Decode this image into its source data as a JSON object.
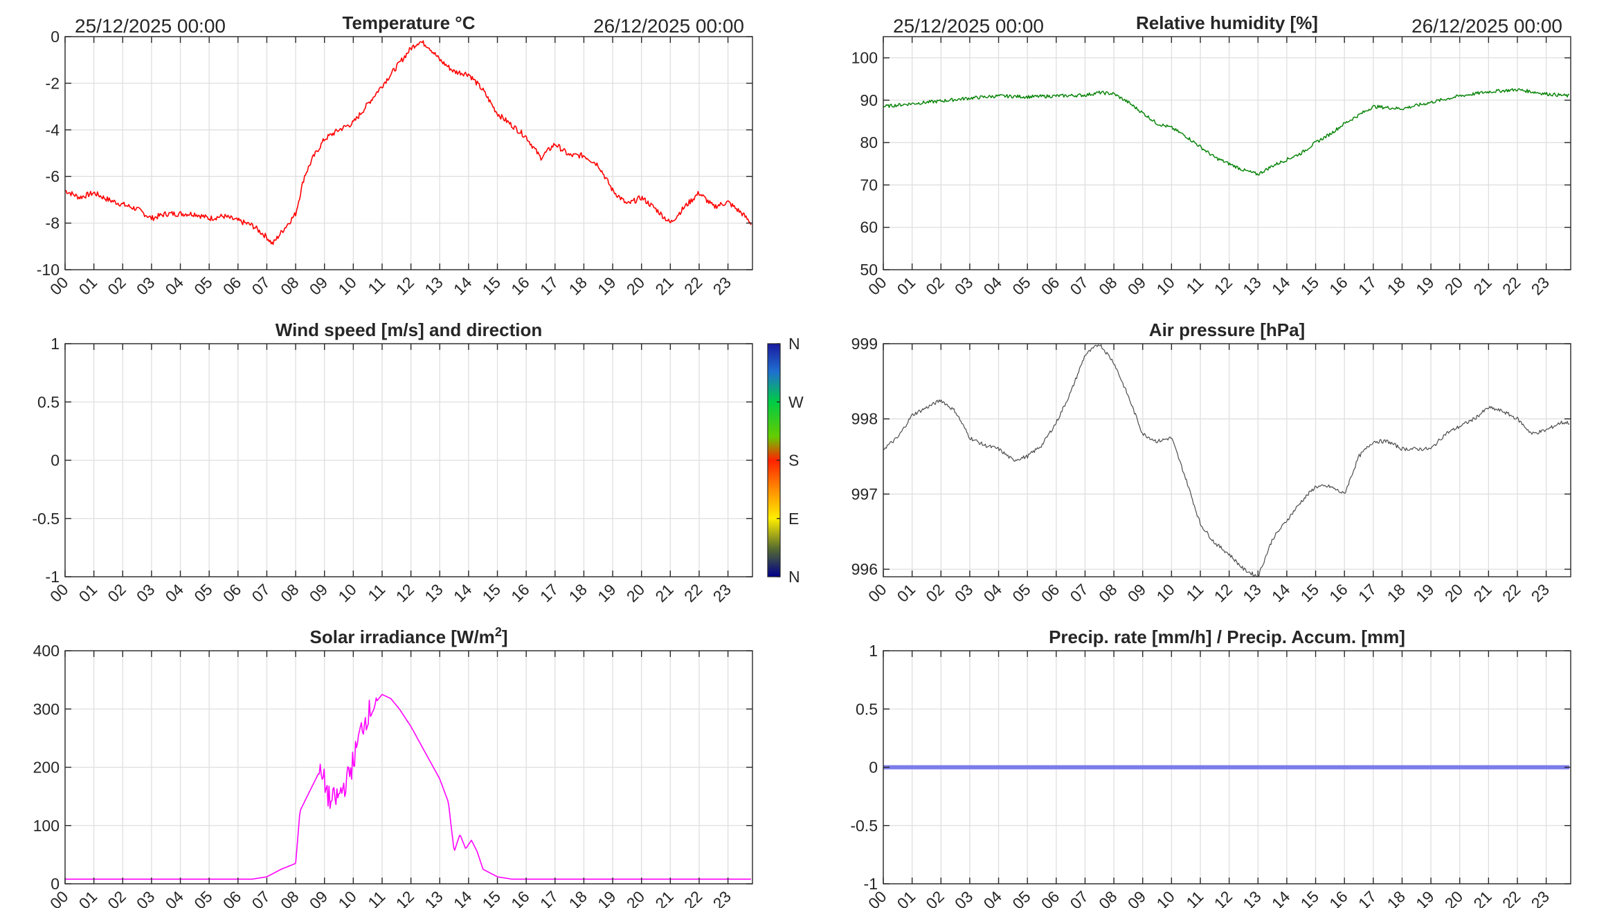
{
  "chart_data": [
    {
      "id": "temp",
      "type": "line",
      "title": "Temperature °C",
      "date_left": "25/12/2025 00:00",
      "date_right": "26/12/2025 00:00",
      "ylim": [
        -10,
        0
      ],
      "yticks": [
        0,
        -2,
        -4,
        -6,
        -8,
        -10
      ],
      "x_hours": [
        0,
        0.5,
        1,
        1.5,
        2,
        2.5,
        3,
        3.5,
        4,
        4.5,
        5,
        5.5,
        6,
        6.5,
        7,
        7.2,
        7.5,
        8,
        8.3,
        8.6,
        9,
        9.5,
        10,
        10.5,
        11,
        11.5,
        12,
        12.3,
        12.6,
        13,
        13.5,
        14,
        14.5,
        15,
        15.5,
        16,
        16.5,
        17,
        17.5,
        18,
        18.5,
        19,
        19.5,
        20,
        20.5,
        21,
        21.5,
        22,
        22.5,
        23,
        23.5,
        23.8
      ],
      "values": [
        -6.6,
        -6.9,
        -6.7,
        -7.0,
        -7.2,
        -7.4,
        -7.8,
        -7.6,
        -7.6,
        -7.6,
        -7.8,
        -7.7,
        -7.9,
        -8.1,
        -8.6,
        -8.9,
        -8.4,
        -7.6,
        -6.0,
        -5.2,
        -4.4,
        -4.0,
        -3.7,
        -2.9,
        -2.1,
        -1.3,
        -0.5,
        -0.2,
        -0.4,
        -1.0,
        -1.5,
        -1.6,
        -2.3,
        -3.3,
        -3.8,
        -4.3,
        -5.2,
        -4.6,
        -5.1,
        -5.1,
        -5.5,
        -6.6,
        -7.2,
        -6.9,
        -7.4,
        -8.0,
        -7.3,
        -6.7,
        -7.3,
        -7.1,
        -7.6,
        -8.0
      ],
      "noise": 0.12,
      "color": "#ff0000",
      "line_width": 1.6
    },
    {
      "id": "rh",
      "type": "line",
      "title": "Relative humidity [%]",
      "date_left": "25/12/2025 00:00",
      "date_right": "26/12/2025 00:00",
      "ylim": [
        50,
        105
      ],
      "yticks": [
        100,
        90,
        80,
        70,
        60,
        50
      ],
      "x_hours": [
        0,
        1,
        2,
        3,
        4,
        5,
        6,
        7,
        7.5,
        8,
        8.5,
        9,
        9.5,
        10,
        10.5,
        11,
        11.5,
        12,
        12.5,
        13,
        13.5,
        14,
        14.5,
        15,
        15.5,
        16,
        16.5,
        17,
        18,
        19,
        20,
        21,
        22,
        23,
        23.8
      ],
      "values": [
        88.5,
        89.2,
        89.8,
        90.5,
        91.0,
        90.8,
        91.0,
        91.2,
        91.8,
        91.5,
        89.5,
        87.0,
        84.5,
        83.5,
        81.5,
        79.0,
        76.5,
        75.0,
        73.5,
        72.5,
        74.5,
        76.0,
        77.5,
        80.0,
        82.0,
        84.5,
        86.5,
        88.5,
        88.0,
        89.5,
        91.0,
        92.0,
        92.5,
        91.5,
        91.0
      ],
      "noise": 0.4,
      "color": "#008000",
      "line_width": 1.4
    },
    {
      "id": "wind",
      "type": "scatter",
      "title": "Wind speed [m/s] and direction",
      "ylim": [
        -1,
        1
      ],
      "yticks": [
        1,
        0.5,
        0,
        -0.5,
        -1
      ],
      "colorbar": {
        "labels": [
          "N",
          "W",
          "S",
          "E",
          "N"
        ],
        "colors": [
          "#1a1aa0",
          "#00cc44",
          "#ff2200",
          "#ffee00",
          "#00008b"
        ]
      }
    },
    {
      "id": "pres",
      "type": "line",
      "title": "Air pressure [hPa]",
      "ylim": [
        995.9,
        999
      ],
      "yticks": [
        999,
        998,
        997,
        996
      ],
      "x_hours": [
        0,
        0.5,
        1,
        1.5,
        2,
        2.5,
        3,
        3.5,
        4,
        4.5,
        5,
        5.5,
        6,
        6.5,
        7,
        7.5,
        8,
        8.5,
        9,
        9.5,
        10,
        10.5,
        11,
        11.5,
        12,
        12.5,
        13,
        13.5,
        14,
        14.5,
        15,
        15.5,
        16,
        16.5,
        17,
        17.5,
        18,
        18.5,
        19,
        19.5,
        20,
        20.5,
        21,
        21.5,
        22,
        22.5,
        23,
        23.5,
        23.8
      ],
      "values": [
        997.6,
        997.75,
        998.05,
        998.15,
        998.25,
        998.1,
        997.75,
        997.65,
        997.6,
        997.45,
        997.5,
        997.65,
        997.95,
        998.35,
        998.85,
        999.0,
        998.75,
        998.3,
        997.8,
        997.7,
        997.75,
        997.2,
        996.6,
        996.35,
        996.2,
        996.0,
        995.9,
        996.4,
        996.65,
        996.9,
        997.1,
        997.1,
        997.0,
        997.5,
        997.7,
        997.7,
        997.6,
        997.6,
        997.6,
        997.8,
        997.9,
        998.0,
        998.15,
        998.1,
        998.0,
        997.8,
        997.85,
        997.95,
        997.95
      ],
      "noise": 0.025,
      "color": "#4d4d4d",
      "line_width": 1.2
    },
    {
      "id": "solar",
      "type": "line",
      "title": "Solar irradiance [W/m",
      "title_sup": "2",
      "title_end": "]",
      "ylim": [
        0,
        400
      ],
      "yticks": [
        400,
        300,
        200,
        100,
        0
      ],
      "x_hours": [
        0,
        6.5,
        7,
        7.5,
        8,
        8.15,
        8.5,
        8.8,
        9,
        9.2,
        9.5,
        9.8,
        10,
        10.3,
        10.6,
        11,
        11.3,
        11.6,
        12,
        12.5,
        13,
        13.3,
        13.5,
        13.7,
        13.9,
        14.1,
        14.3,
        14.5,
        15,
        15.5,
        23.8
      ],
      "values": [
        8,
        8,
        12,
        25,
        35,
        125,
        160,
        190,
        175,
        140,
        150,
        180,
        210,
        270,
        300,
        325,
        318,
        300,
        270,
        225,
        180,
        140,
        55,
        85,
        60,
        75,
        55,
        25,
        12,
        8,
        8
      ],
      "noise_ranges": [
        [
          8.8,
          10.8,
          22
        ]
      ],
      "color": "#ff00ff",
      "line_width": 1.6
    },
    {
      "id": "precip",
      "type": "line",
      "title": "Precip. rate [mm/h] / Precip. Accum. [mm]",
      "ylim": [
        -1,
        1
      ],
      "yticks": [
        1,
        0.5,
        0,
        -0.5,
        -1
      ],
      "x_hours": [
        0,
        23.8
      ],
      "values": [
        0,
        0
      ],
      "color": "#7b7bea",
      "line_width": 6
    }
  ],
  "x_tick_labels": [
    "00",
    "01",
    "02",
    "03",
    "04",
    "05",
    "06",
    "07",
    "08",
    "09",
    "10",
    "11",
    "12",
    "13",
    "14",
    "15",
    "16",
    "17",
    "18",
    "19",
    "20",
    "21",
    "22",
    "23"
  ]
}
